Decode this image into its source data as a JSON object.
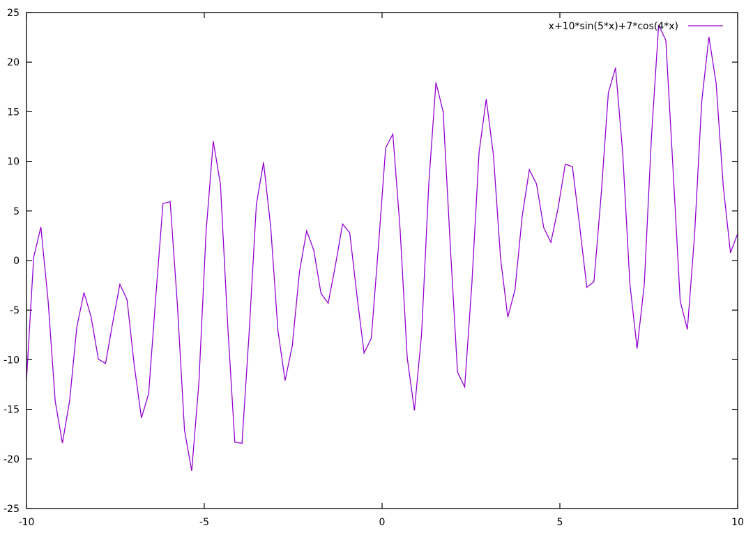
{
  "chart_data": {
    "type": "line",
    "title": "",
    "xlabel": "",
    "ylabel": "",
    "xlim": [
      -10,
      10
    ],
    "ylim": [
      -25,
      25
    ],
    "xticks": [
      -10,
      -5,
      0,
      5,
      10
    ],
    "yticks": [
      -25,
      -20,
      -15,
      -10,
      -5,
      0,
      5,
      10,
      15,
      20,
      25
    ],
    "grid": false,
    "legend_position": "top-right",
    "series": [
      {
        "name": "x+10*sin(5*x)+7*cos(4*x)",
        "expression": "x+10*sin(5*x)+7*cos(4*x)",
        "samples": 100,
        "color": "#9400d3"
      }
    ]
  }
}
